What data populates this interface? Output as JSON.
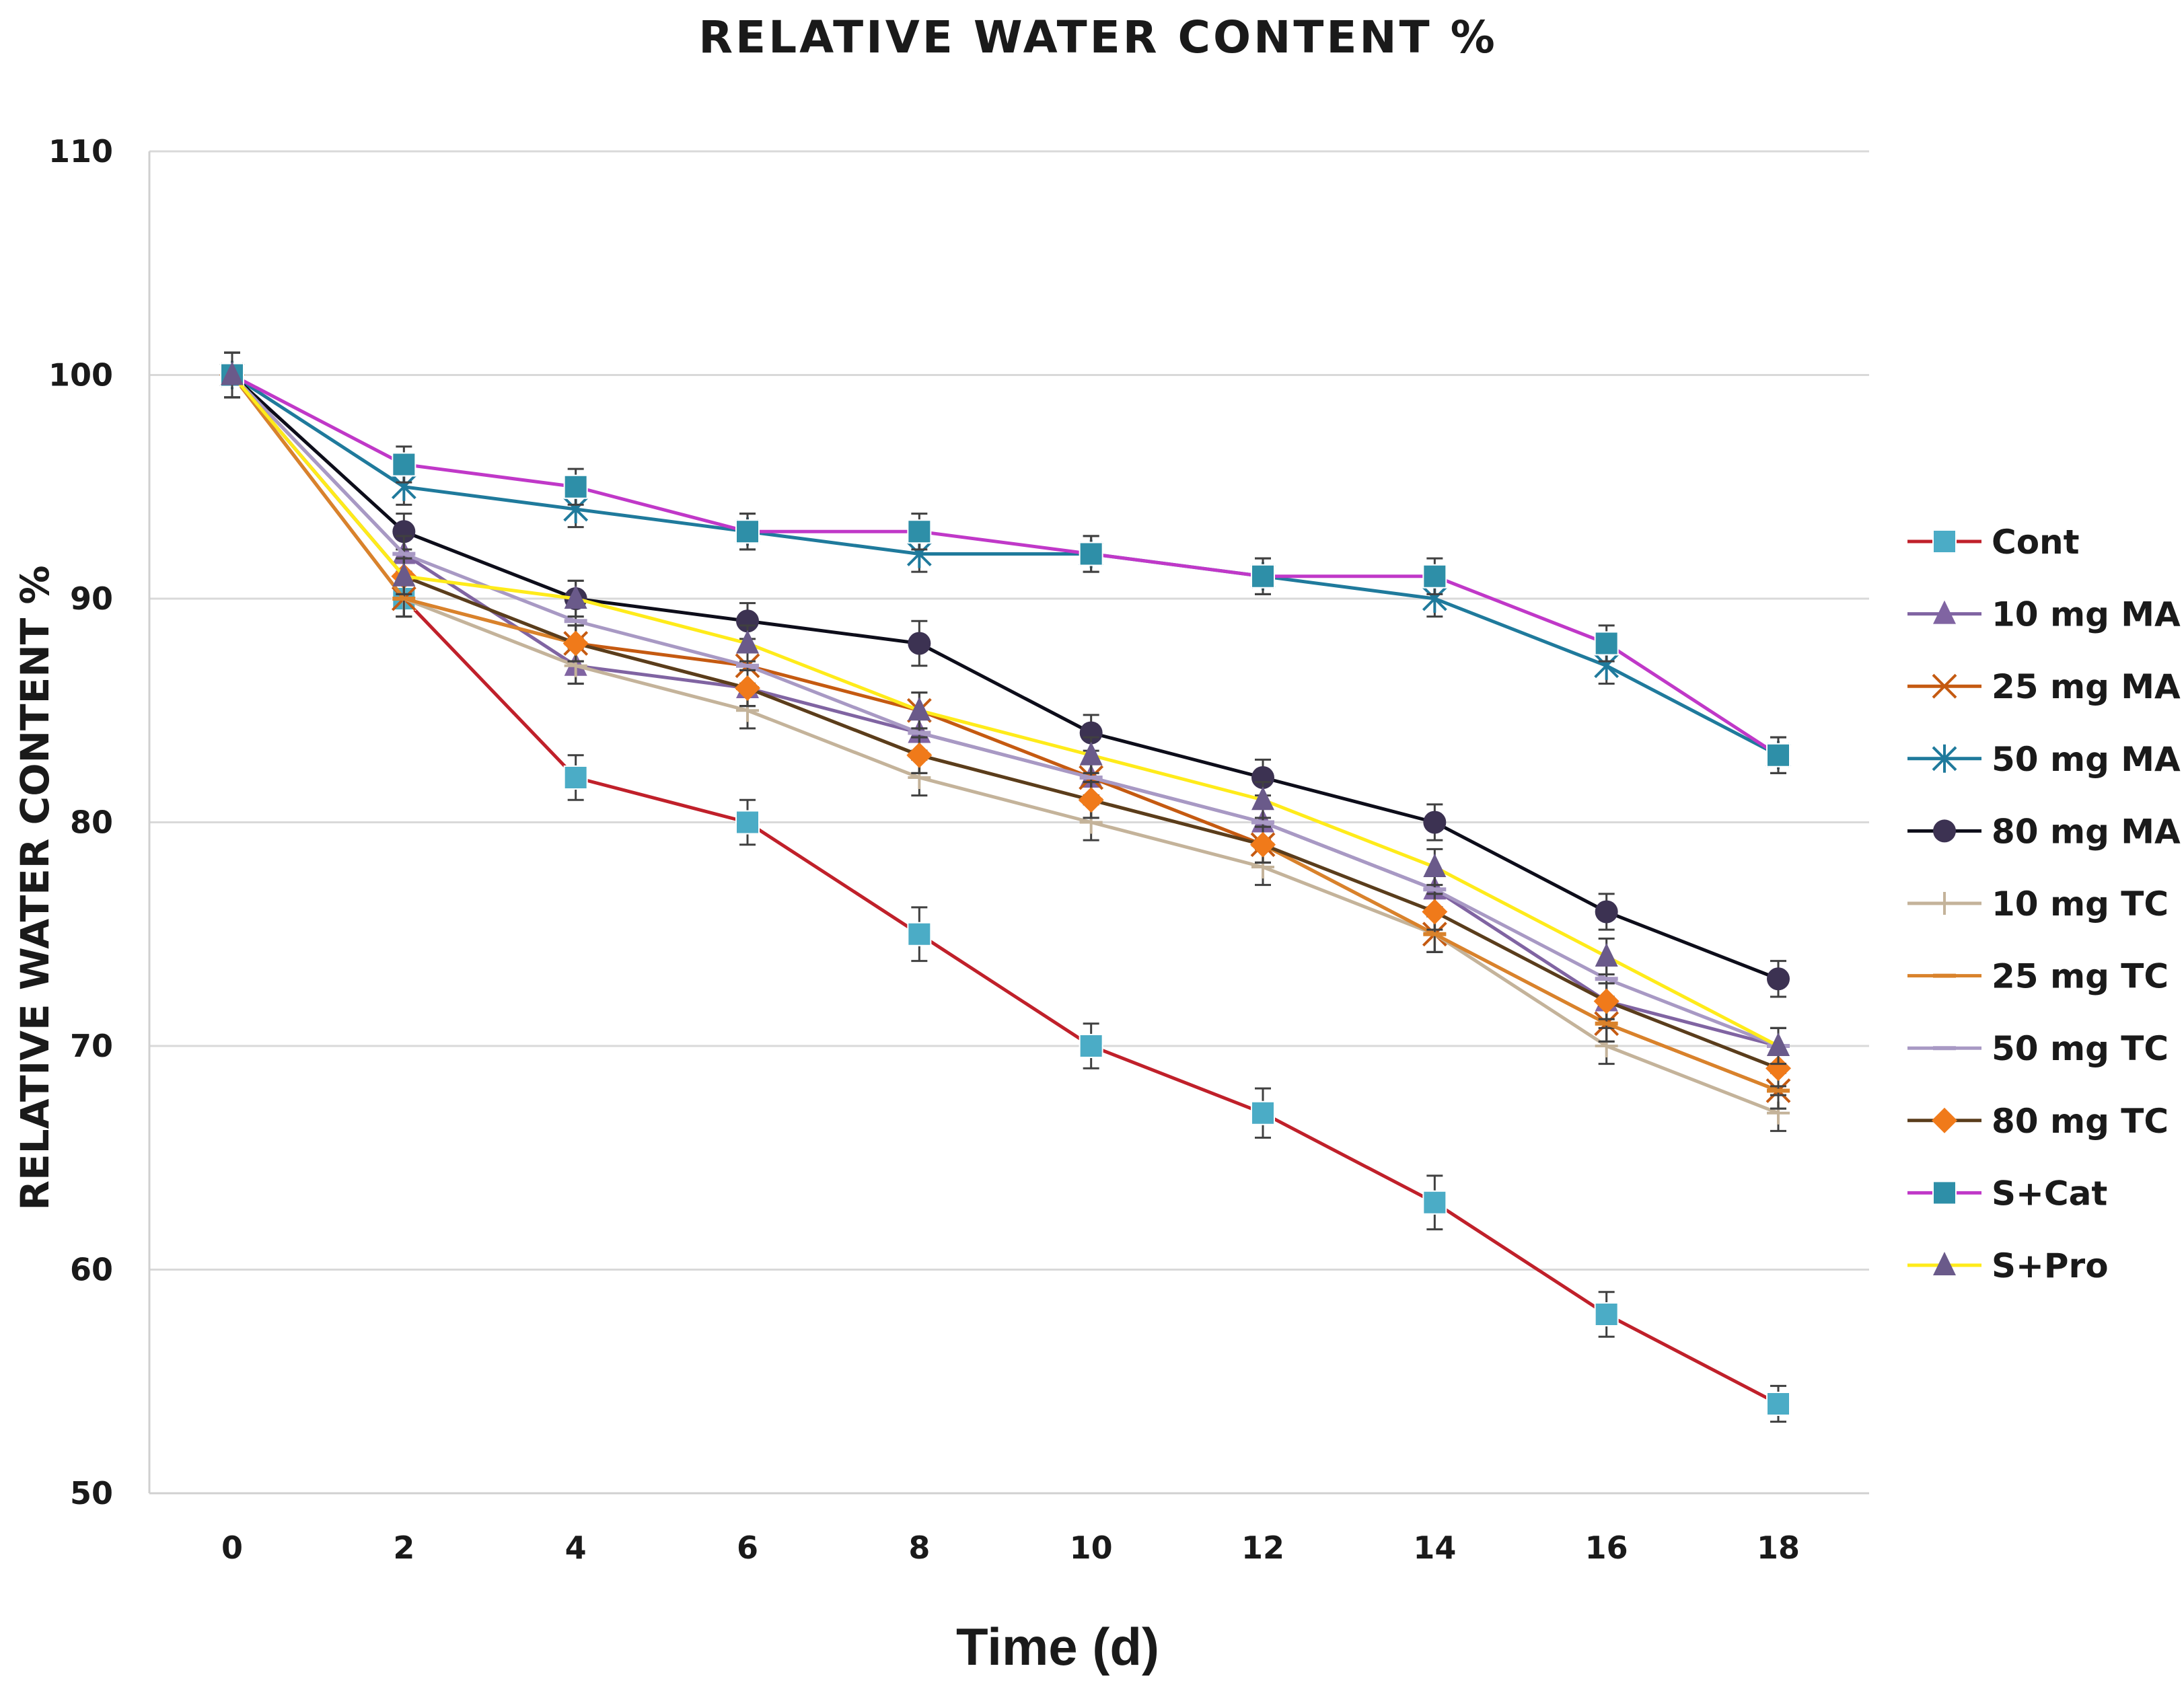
{
  "chart_data": {
    "type": "line",
    "title": "RELATIVE WATER CONTENT %",
    "xlabel": "Time (d)",
    "ylabel": "RELATIVE WATER CONTENT %",
    "x": [
      0,
      2,
      4,
      6,
      8,
      10,
      12,
      14,
      16,
      18
    ],
    "xticks": [
      "0",
      "2",
      "4",
      "6",
      "8",
      "10",
      "12",
      "14",
      "16",
      "18"
    ],
    "yticks": [
      "50",
      "60",
      "70",
      "80",
      "90",
      "100",
      "110"
    ],
    "ylim": [
      50,
      110
    ],
    "grid": "horizontal",
    "legend_position": "right",
    "series": [
      {
        "name": "Cont",
        "color": "#c0202a",
        "marker": "square",
        "marker_color": "#4bacc6",
        "values": [
          100,
          90,
          82,
          80,
          75,
          70,
          67,
          63,
          58,
          54
        ],
        "errors": [
          1,
          0.8,
          1,
          1,
          1.2,
          1,
          1.1,
          1.2,
          1,
          0.8
        ]
      },
      {
        "name": "10 mg MA",
        "color": "#8064a2",
        "marker": "triangle",
        "marker_color": "#8064a2",
        "values": [
          100,
          92,
          87,
          86,
          84,
          82,
          80,
          77,
          72,
          70
        ],
        "errors": [
          1,
          0.8,
          0.8,
          0.8,
          0.8,
          0.8,
          0.8,
          0.8,
          0.8,
          0.8
        ]
      },
      {
        "name": "25 mg MA",
        "color": "#c55a11",
        "marker": "x",
        "marker_color": "#c55a11",
        "values": [
          100,
          90,
          88,
          87,
          85,
          82,
          79,
          75,
          71,
          68
        ],
        "errors": [
          1,
          0.8,
          0.8,
          0.8,
          0.8,
          0.8,
          0.8,
          0.8,
          0.8,
          0.8
        ]
      },
      {
        "name": "50 mg MA",
        "color": "#1f7a9c",
        "marker": "star",
        "marker_color": "#1f7a9c",
        "values": [
          100,
          95,
          94,
          93,
          92,
          92,
          91,
          90,
          87,
          83
        ],
        "errors": [
          1,
          0.8,
          0.8,
          0.8,
          0.8,
          0.8,
          0.8,
          0.8,
          0.8,
          0.8
        ]
      },
      {
        "name": "80 mg MA",
        "color": "#0d0d1a",
        "marker": "circle",
        "marker_color": "#3c3252",
        "values": [
          100,
          93,
          90,
          89,
          88,
          84,
          82,
          80,
          76,
          73
        ],
        "errors": [
          1,
          0.8,
          0.8,
          0.8,
          1,
          0.8,
          0.8,
          0.8,
          0.8,
          0.8
        ]
      },
      {
        "name": "10 mg TC",
        "color": "#c4b39a",
        "marker": "plus",
        "marker_color": "#c4b39a",
        "values": [
          100,
          90,
          87,
          85,
          82,
          80,
          78,
          75,
          70,
          67
        ],
        "errors": [
          1,
          0.8,
          0.8,
          0.8,
          0.8,
          0.8,
          0.8,
          0.8,
          0.8,
          0.8
        ]
      },
      {
        "name": "25 mg TC",
        "color": "#d9822b",
        "marker": "dash",
        "marker_color": "#d9822b",
        "values": [
          100,
          90,
          88,
          86,
          83,
          81,
          79,
          75,
          71,
          68
        ],
        "errors": [
          1,
          0.8,
          0.8,
          0.8,
          0.8,
          0.8,
          0.8,
          0.8,
          0.8,
          0.8
        ]
      },
      {
        "name": "50 mg TC",
        "color": "#a899c4",
        "marker": "dash",
        "marker_color": "#a899c4",
        "values": [
          100,
          92,
          89,
          87,
          84,
          82,
          80,
          77,
          73,
          70
        ],
        "errors": [
          1,
          0.8,
          0.8,
          0.8,
          0.8,
          0.8,
          0.8,
          0.8,
          0.8,
          0.8
        ]
      },
      {
        "name": "80 mg TC",
        "color": "#5a3d1c",
        "marker": "diamond",
        "marker_color": "#f07a1a",
        "values": [
          100,
          91,
          88,
          86,
          83,
          81,
          79,
          76,
          72,
          69
        ],
        "errors": [
          1,
          0.8,
          0.8,
          0.8,
          0.8,
          0.8,
          0.8,
          0.8,
          0.8,
          0.8
        ]
      },
      {
        "name": "S+Cat",
        "color": "#c038c8",
        "marker": "square",
        "marker_color": "#2e8fa8",
        "values": [
          100,
          96,
          95,
          93,
          93,
          92,
          91,
          91,
          88,
          83
        ],
        "errors": [
          1,
          0.8,
          0.8,
          0.8,
          0.8,
          0.8,
          0.8,
          0.8,
          0.8,
          0.8
        ]
      },
      {
        "name": "S+Pro",
        "color": "#ffeb1a",
        "marker": "triangle",
        "marker_color": "#6a5a8a",
        "values": [
          100,
          91,
          90,
          88,
          85,
          83,
          81,
          78,
          74,
          70
        ],
        "errors": [
          1,
          0.8,
          0.8,
          0.8,
          0.8,
          0.8,
          0.8,
          0.8,
          0.8,
          0.8
        ]
      }
    ]
  }
}
